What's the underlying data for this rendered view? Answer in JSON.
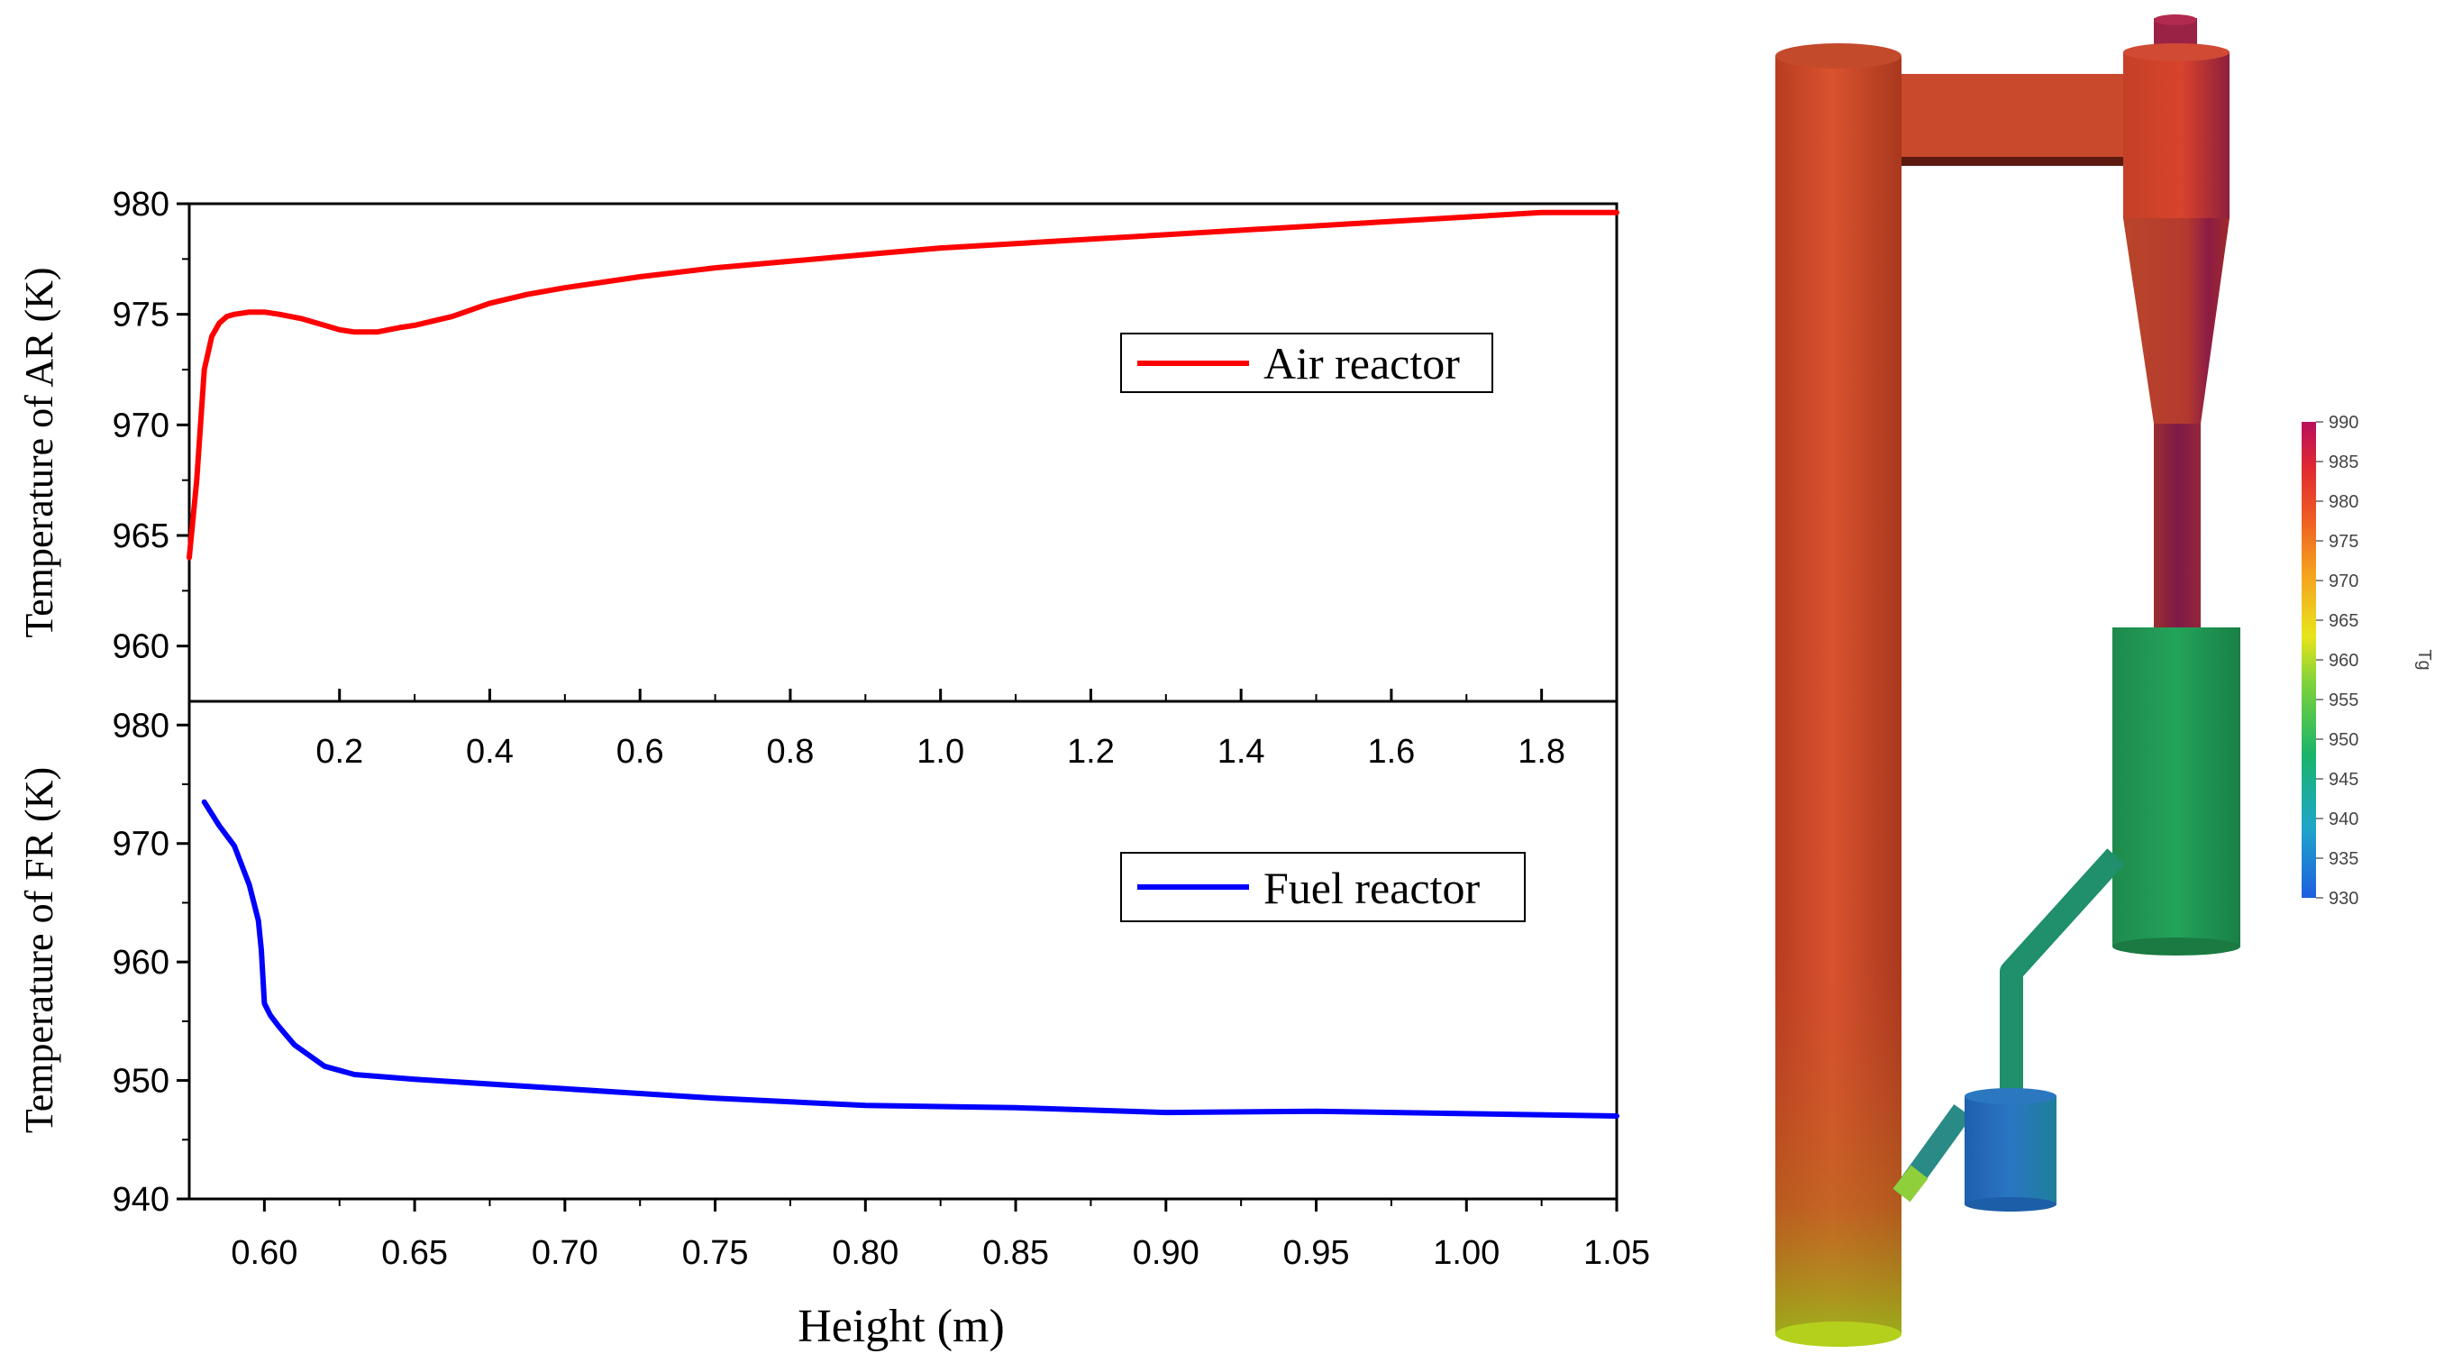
{
  "colors": {
    "air_series": "#ff0000",
    "fuel_series": "#0000ff",
    "axis": "#000000"
  },
  "chart_data": [
    {
      "type": "line",
      "name": "air-reactor-profile",
      "ylabel": "Temperature of AR (K)",
      "xlabel": "",
      "xlim": [
        0.0,
        1.9
      ],
      "ylim": [
        957.5,
        980
      ],
      "xticks": [
        0.2,
        0.4,
        0.6,
        0.8,
        1.0,
        1.2,
        1.4,
        1.6,
        1.8
      ],
      "xtick_labels": [
        "0.2",
        "0.4",
        "0.6",
        "0.8",
        "1.0",
        "1.2",
        "1.4",
        "1.6",
        "1.8"
      ],
      "yticks": [
        960,
        965,
        970,
        975,
        980
      ],
      "ytick_labels": [
        "960",
        "965",
        "970",
        "975",
        "980"
      ],
      "legend": "top-right",
      "series": [
        {
          "name": "Air reactor",
          "color": "#ff0000",
          "x": [
            0.0,
            0.01,
            0.02,
            0.03,
            0.04,
            0.05,
            0.06,
            0.08,
            0.1,
            0.12,
            0.15,
            0.18,
            0.2,
            0.22,
            0.25,
            0.28,
            0.3,
            0.35,
            0.4,
            0.45,
            0.5,
            0.6,
            0.7,
            0.8,
            0.9,
            1.0,
            1.2,
            1.4,
            1.6,
            1.8,
            1.9
          ],
          "y": [
            964.0,
            967.5,
            972.5,
            974.0,
            974.6,
            974.9,
            975.0,
            975.1,
            975.1,
            975.0,
            974.8,
            974.5,
            974.3,
            974.2,
            974.2,
            974.4,
            974.5,
            974.9,
            975.5,
            975.9,
            976.2,
            976.7,
            977.1,
            977.4,
            977.7,
            978.0,
            978.4,
            978.8,
            979.2,
            979.6,
            979.6
          ]
        }
      ]
    },
    {
      "type": "line",
      "name": "fuel-reactor-profile",
      "ylabel": "Temperature of FR (K)",
      "xlabel": "Height (m)",
      "xlim": [
        0.575,
        1.05
      ],
      "ylim": [
        940,
        982
      ],
      "xticks": [
        0.6,
        0.65,
        0.7,
        0.75,
        0.8,
        0.85,
        0.9,
        0.95,
        1.0,
        1.05
      ],
      "xtick_labels": [
        "0.60",
        "0.65",
        "0.70",
        "0.75",
        "0.80",
        "0.85",
        "0.90",
        "0.95",
        "1.00",
        "1.05"
      ],
      "yticks": [
        940,
        950,
        960,
        970,
        980
      ],
      "ytick_labels": [
        "940",
        "950",
        "960",
        "970",
        "980"
      ],
      "legend": "top-right",
      "series": [
        {
          "name": "Fuel reactor",
          "color": "#0000ff",
          "x": [
            0.58,
            0.585,
            0.59,
            0.595,
            0.598,
            0.599,
            0.6,
            0.602,
            0.605,
            0.61,
            0.62,
            0.63,
            0.65,
            0.7,
            0.75,
            0.8,
            0.85,
            0.9,
            0.95,
            1.0,
            1.05
          ],
          "y": [
            973.5,
            971.5,
            969.8,
            966.5,
            963.5,
            961.0,
            956.5,
            955.5,
            954.5,
            953.0,
            951.2,
            950.5,
            950.1,
            949.3,
            948.5,
            947.9,
            947.7,
            947.3,
            947.4,
            947.2,
            947.0
          ]
        }
      ]
    }
  ],
  "colorbar": {
    "title": "Tg",
    "ticks": [
      "990",
      "985",
      "980",
      "975",
      "970",
      "965",
      "960",
      "955",
      "950",
      "945",
      "940",
      "935",
      "930"
    ]
  }
}
